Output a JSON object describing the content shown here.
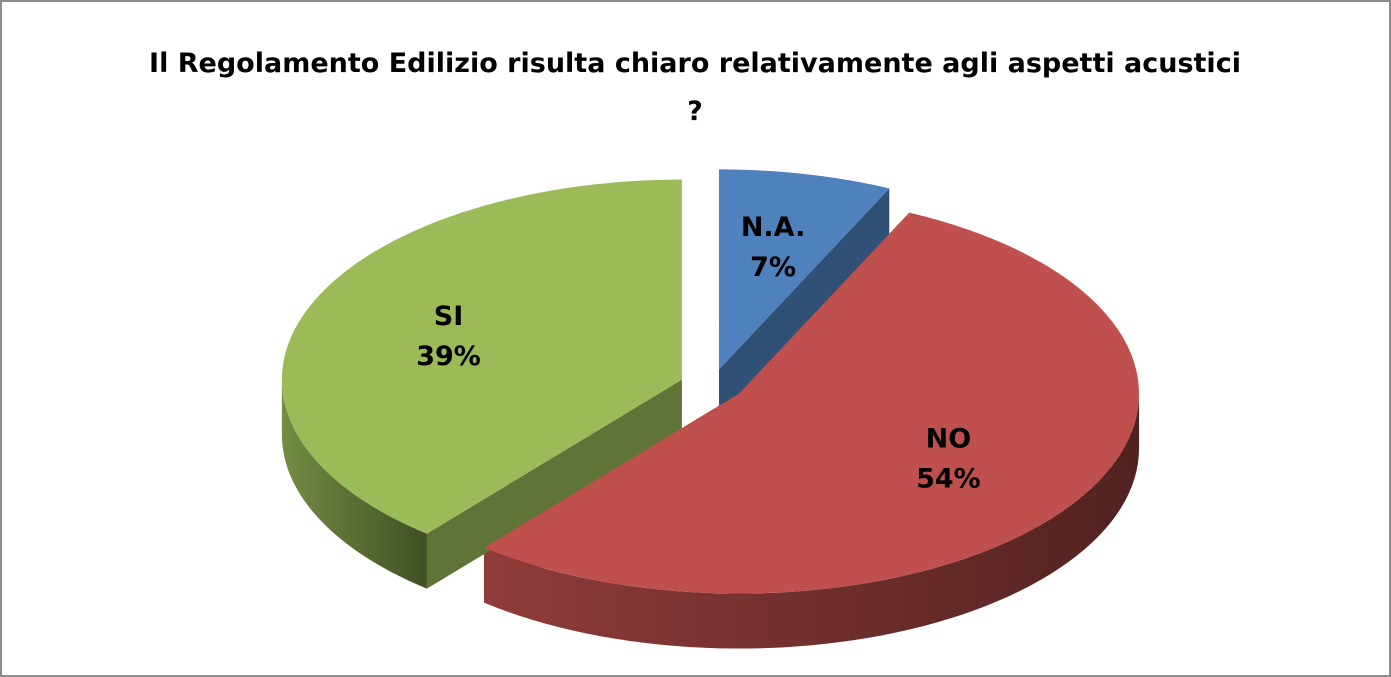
{
  "chart_data": {
    "type": "pie",
    "title": "Il Regolamento Edilizio risulta chiaro relativamente agli aspetti acustici ?",
    "categories": [
      "N.A.",
      "NO",
      "SI"
    ],
    "values": [
      7,
      54,
      39
    ],
    "value_labels": [
      "7%",
      "54%",
      "39%"
    ],
    "colors": [
      "#4f81bd",
      "#c0504d",
      "#9bbb59"
    ]
  }
}
